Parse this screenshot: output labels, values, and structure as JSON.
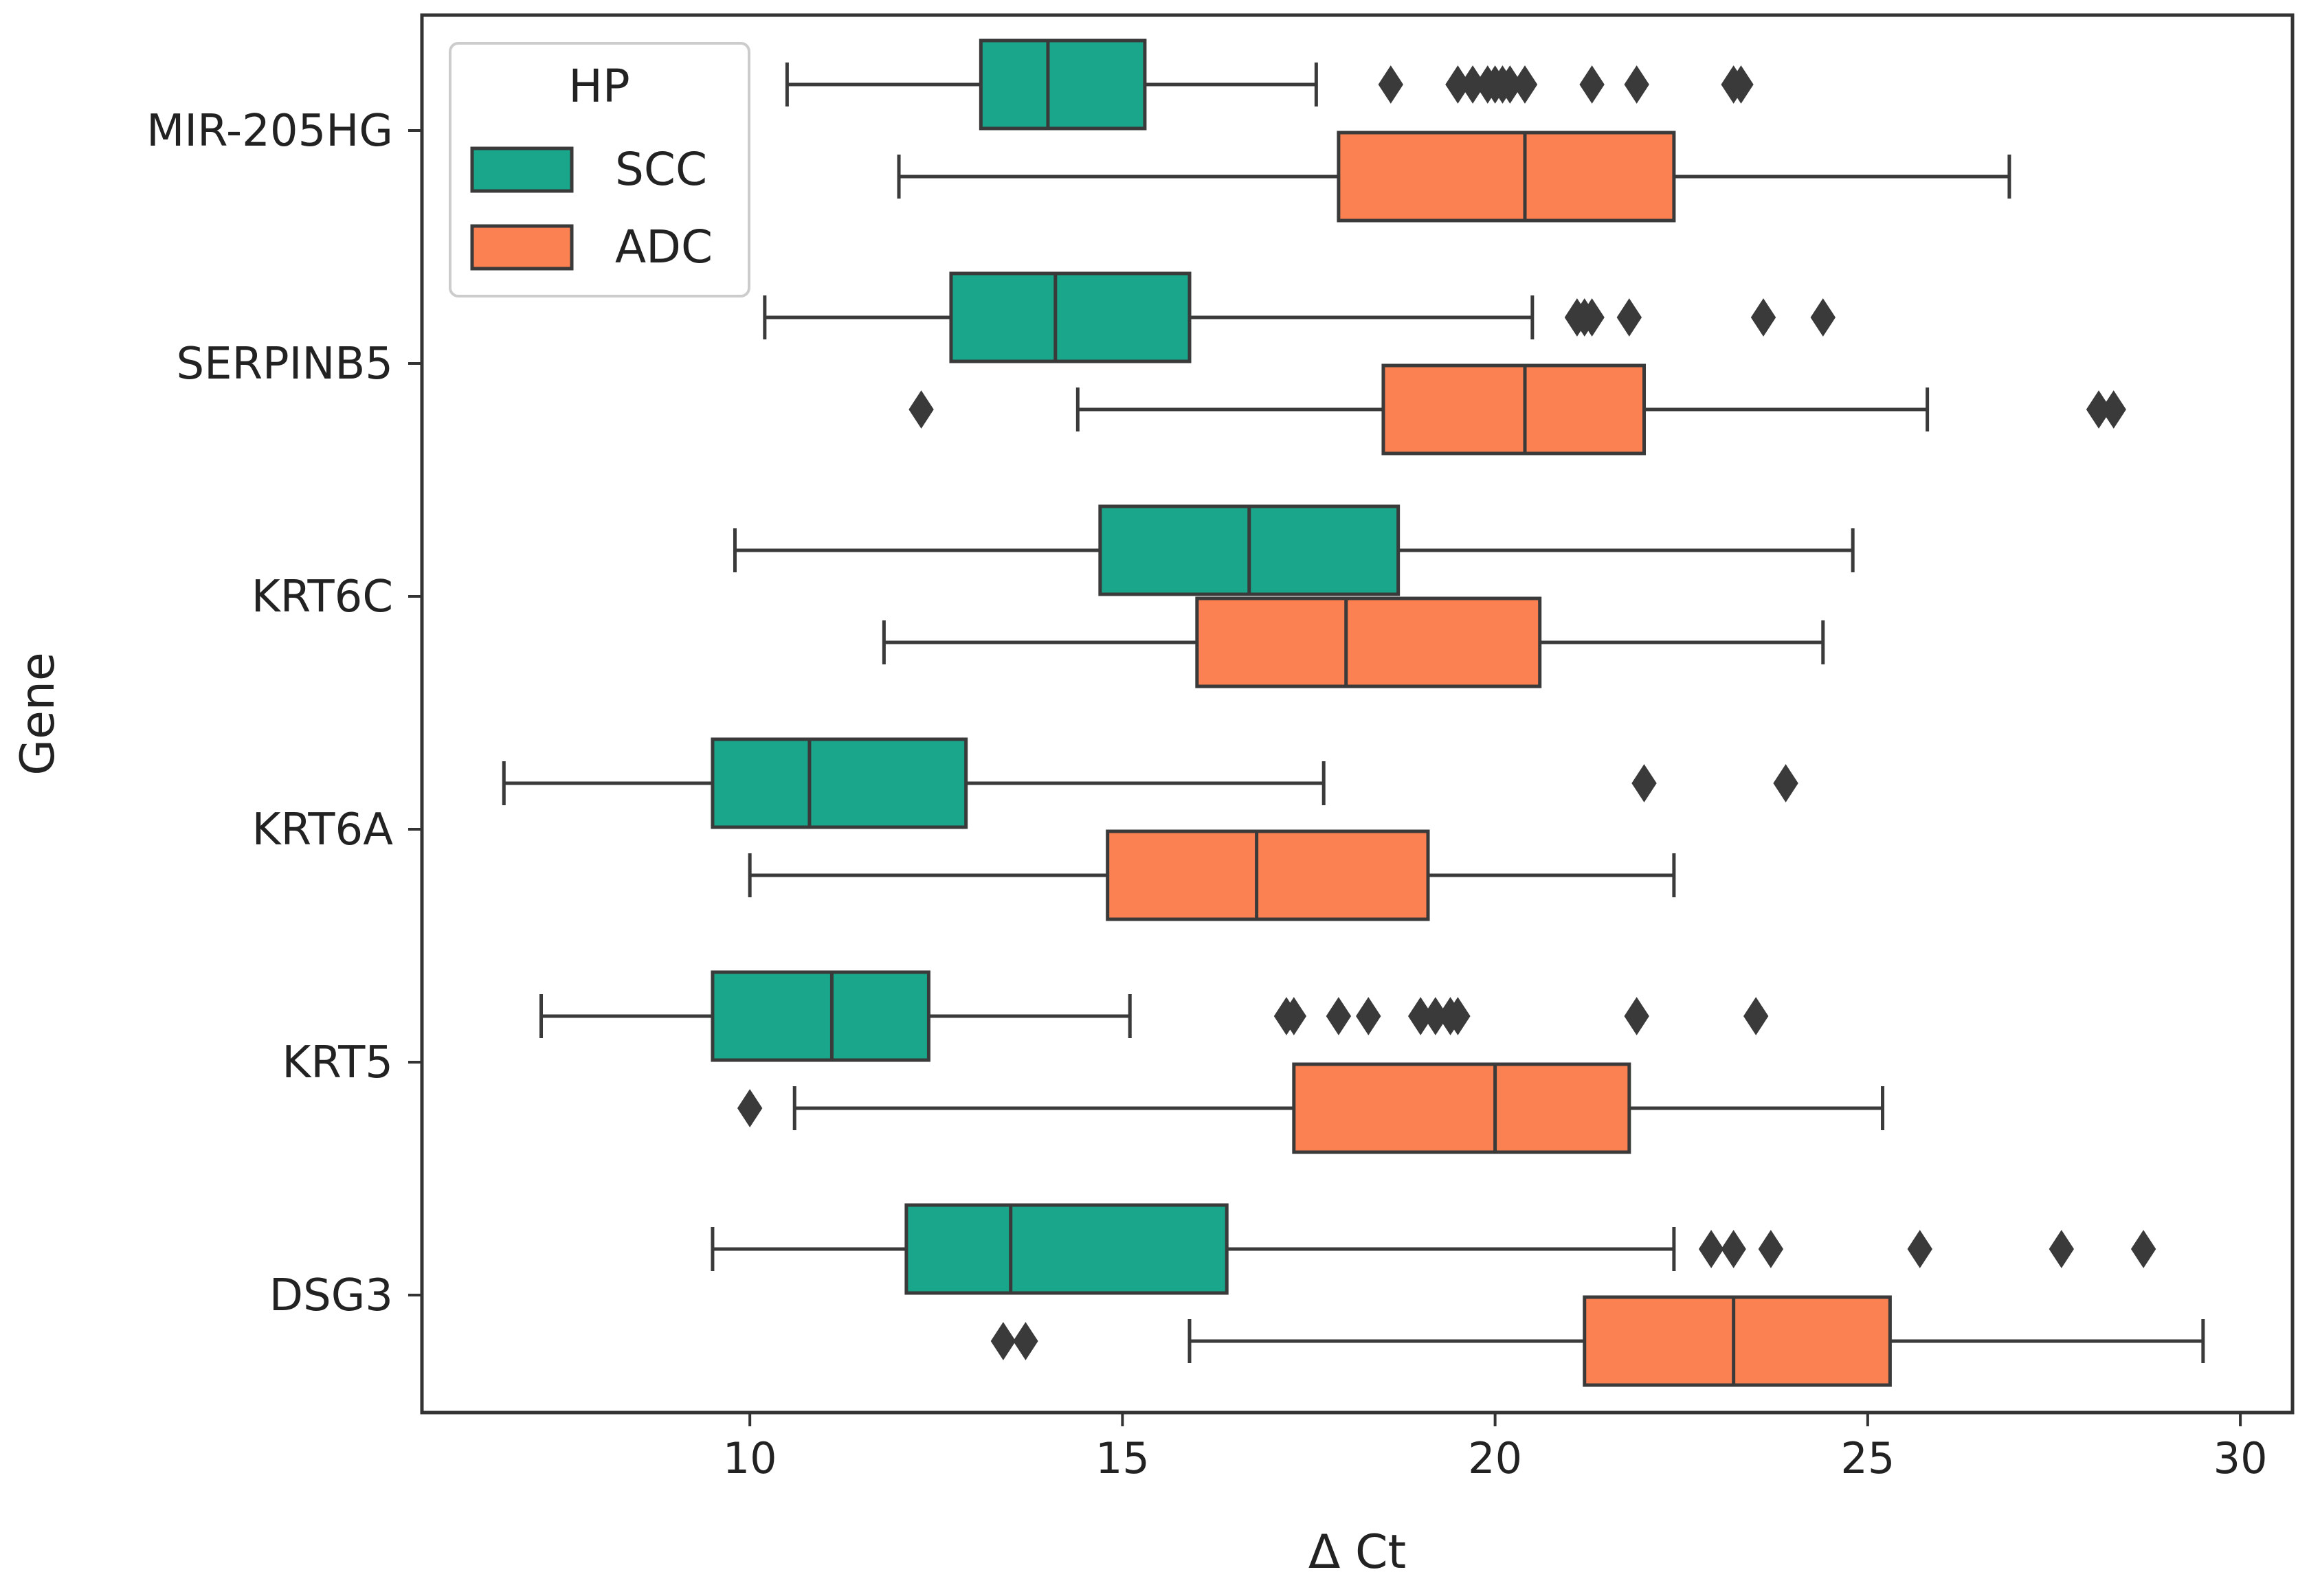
{
  "chart_data": {
    "type": "boxplot",
    "orientation": "horizontal",
    "title": "",
    "xlabel": "Δ Ct",
    "ylabel": "Gene",
    "xlim": [
      5.6,
      30.7
    ],
    "xticks": [
      10,
      15,
      20,
      25,
      30
    ],
    "xtick_labels": [
      "10",
      "15",
      "20",
      "25",
      "30"
    ],
    "categories": [
      "MIR-205HG",
      "SERPINB5",
      "KRT6C",
      "KRT6A",
      "KRT5",
      "DSG3"
    ],
    "legend": {
      "title": "HP",
      "position": "top-left",
      "entries": [
        {
          "label": "SCC",
          "color": "#1aa68a"
        },
        {
          "label": "ADC",
          "color": "#fc8152"
        }
      ]
    },
    "series": [
      {
        "name": "SCC",
        "color": "#1aa68a",
        "boxes": [
          {
            "gene": "MIR-205HG",
            "whisker_low": 10.5,
            "q1": 13.1,
            "median": 14.0,
            "q3": 15.3,
            "whisker_high": 17.6,
            "outliers": [
              18.6,
              19.5,
              19.7,
              19.9,
              20.0,
              20.1,
              20.2,
              20.4,
              21.3,
              21.9,
              23.2,
              23.3
            ]
          },
          {
            "gene": "SERPINB5",
            "whisker_low": 10.2,
            "q1": 12.7,
            "median": 14.1,
            "q3": 15.9,
            "whisker_high": 20.5,
            "outliers": [
              21.1,
              21.2,
              21.3,
              21.8,
              23.6,
              24.4
            ]
          },
          {
            "gene": "KRT6C",
            "whisker_low": 9.8,
            "q1": 14.7,
            "median": 16.7,
            "q3": 18.7,
            "whisker_high": 24.8,
            "outliers": []
          },
          {
            "gene": "KRT6A",
            "whisker_low": 6.7,
            "q1": 9.5,
            "median": 10.8,
            "q3": 12.9,
            "whisker_high": 17.7,
            "outliers": [
              22.0,
              23.9
            ]
          },
          {
            "gene": "KRT5",
            "whisker_low": 7.2,
            "q1": 9.5,
            "median": 11.1,
            "q3": 12.4,
            "whisker_high": 15.1,
            "outliers": [
              17.2,
              17.3,
              17.9,
              18.3,
              19.0,
              19.2,
              19.4,
              19.5,
              21.9,
              23.5
            ]
          },
          {
            "gene": "DSG3",
            "whisker_low": 9.5,
            "q1": 12.1,
            "median": 13.5,
            "q3": 16.4,
            "whisker_high": 22.4,
            "outliers": [
              22.9,
              23.2,
              23.7,
              25.7,
              27.6,
              28.7
            ]
          }
        ]
      },
      {
        "name": "ADC",
        "color": "#fc8152",
        "boxes": [
          {
            "gene": "MIR-205HG",
            "whisker_low": 12.0,
            "q1": 17.9,
            "median": 20.4,
            "q3": 22.4,
            "whisker_high": 26.9,
            "outliers": []
          },
          {
            "gene": "SERPINB5",
            "whisker_low": 14.4,
            "q1": 18.5,
            "median": 20.4,
            "q3": 22.0,
            "whisker_high": 25.8,
            "outliers": [
              12.3,
              28.1,
              28.3
            ]
          },
          {
            "gene": "KRT6C",
            "whisker_low": 11.8,
            "q1": 16.0,
            "median": 18.0,
            "q3": 20.6,
            "whisker_high": 24.4,
            "outliers": []
          },
          {
            "gene": "KRT6A",
            "whisker_low": 10.0,
            "q1": 14.8,
            "median": 16.8,
            "q3": 19.1,
            "whisker_high": 22.4,
            "outliers": []
          },
          {
            "gene": "KRT5",
            "whisker_low": 10.6,
            "q1": 17.3,
            "median": 20.0,
            "q3": 21.8,
            "whisker_high": 25.2,
            "outliers": [
              10.0
            ]
          },
          {
            "gene": "DSG3",
            "whisker_low": 15.9,
            "q1": 21.2,
            "median": 23.2,
            "q3": 25.3,
            "whisker_high": 29.5,
            "outliers": [
              13.4,
              13.7
            ]
          }
        ]
      }
    ]
  }
}
